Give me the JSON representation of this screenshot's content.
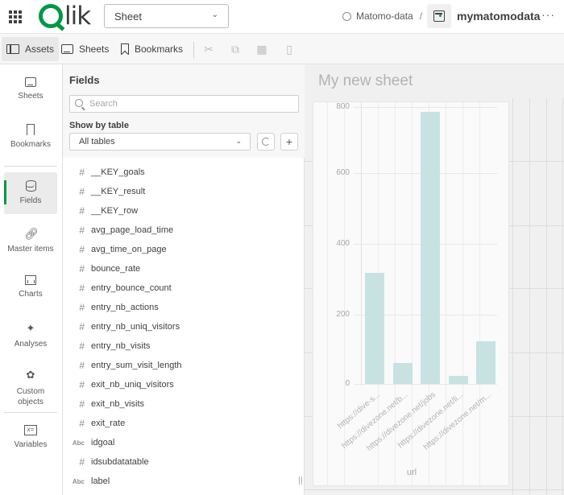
{
  "header": {
    "logo_text": "lik",
    "sheet_select": "Sheet",
    "space_name": "Matomo-data",
    "separator": "/",
    "app_name": "mymatomodata",
    "more_label": "···"
  },
  "toolbar": {
    "assets_label": "Assets",
    "sheets_label": "Sheets",
    "bookmarks_label": "Bookmarks",
    "icons": [
      "cut-icon",
      "copy-icon",
      "paste-icon",
      "delete-icon"
    ]
  },
  "leftnav": {
    "items": [
      {
        "label": "Sheets",
        "icon": "sheets-icon"
      },
      {
        "label": "Bookmarks",
        "icon": "bookmark-icon"
      },
      {
        "label": "Fields",
        "icon": "database-icon",
        "active": true
      },
      {
        "label": "Master items",
        "icon": "link-icon"
      },
      {
        "label": "Charts",
        "icon": "bar-chart-icon"
      },
      {
        "label": "Analyses",
        "icon": "sparkle-chart-icon"
      },
      {
        "label": "Custom objects",
        "icon": "puzzle-icon"
      },
      {
        "label": "Variables",
        "icon": "variable-icon"
      }
    ],
    "custom_objects_line1": "Custom",
    "custom_objects_line2": "objects"
  },
  "fields_panel": {
    "title": "Fields",
    "search_placeholder": "Search",
    "show_by_table_label": "Show by table",
    "table_select": "All tables",
    "add_label": "+",
    "fields": [
      {
        "type": "#",
        "name": "__KEY_goals"
      },
      {
        "type": "#",
        "name": "__KEY_result"
      },
      {
        "type": "#",
        "name": "__KEY_row"
      },
      {
        "type": "#",
        "name": "avg_page_load_time"
      },
      {
        "type": "#",
        "name": "avg_time_on_page"
      },
      {
        "type": "#",
        "name": "bounce_rate"
      },
      {
        "type": "#",
        "name": "entry_bounce_count"
      },
      {
        "type": "#",
        "name": "entry_nb_actions"
      },
      {
        "type": "#",
        "name": "entry_nb_uniq_visitors"
      },
      {
        "type": "#",
        "name": "entry_nb_visits"
      },
      {
        "type": "#",
        "name": "entry_sum_visit_length"
      },
      {
        "type": "#",
        "name": "exit_nb_uniq_visitors"
      },
      {
        "type": "#",
        "name": "exit_nb_visits"
      },
      {
        "type": "#",
        "name": "exit_rate"
      },
      {
        "type": "Abc",
        "name": "idgoal"
      },
      {
        "type": "#",
        "name": "idsubdatatable"
      },
      {
        "type": "Abc",
        "name": "label"
      }
    ]
  },
  "sheet": {
    "title": "My new sheet"
  },
  "colors": {
    "brand": "#009845",
    "bar": "#c8e2e2"
  },
  "chart_data": {
    "type": "bar",
    "title": "",
    "xlabel": "url",
    "ylabel": "",
    "categories": [
      "https://dive-s...",
      "https://divezone.net/b...",
      "https://divezone.net/jobs",
      "https://divezone.net/li...",
      "https://divezone.net/m..."
    ],
    "values": [
      321,
      60,
      786,
      23,
      123
    ],
    "yticks": [
      "800",
      "600",
      "400",
      "200",
      "0"
    ],
    "ylim": [
      0,
      800
    ],
    "grid": true,
    "legend": "none"
  }
}
